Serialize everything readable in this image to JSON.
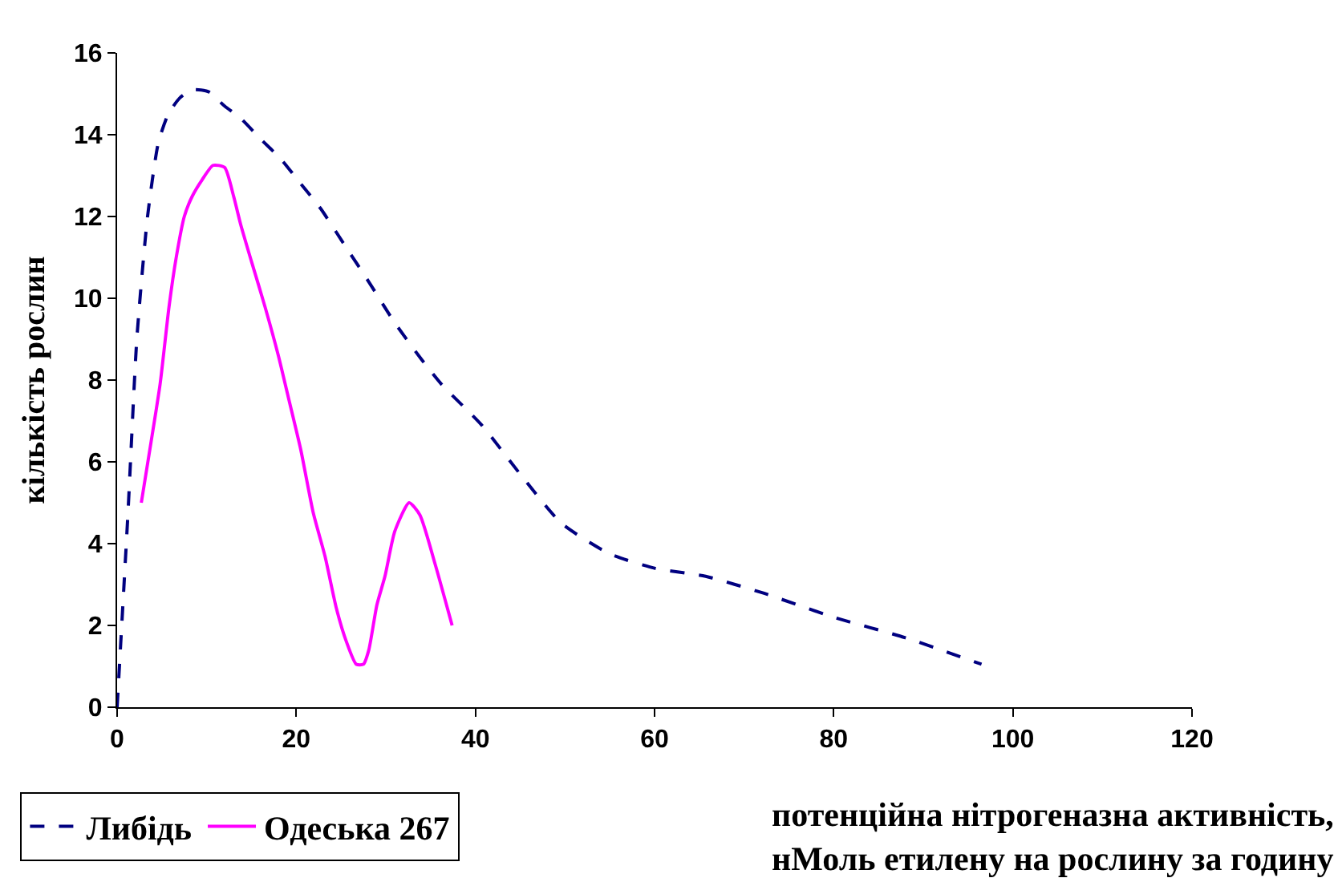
{
  "chart_data": {
    "type": "line",
    "xlabel": "потенційна нітрогеназна активність,\nнМоль етилену на рослину за годину",
    "ylabel": "кількість рослин",
    "xlim": [
      0,
      120
    ],
    "xticks": [
      0,
      20,
      40,
      60,
      80,
      100,
      120
    ],
    "ylim": [
      0,
      16
    ],
    "yticks": [
      0,
      2,
      4,
      6,
      8,
      10,
      12,
      14,
      16
    ],
    "legend": "bottom left",
    "marker": "none",
    "series": [
      {
        "name": "Либідь",
        "color": "#000080",
        "line_style": "dashed",
        "x": [
          0,
          1.2,
          2.2,
          3.4,
          4.6,
          5.7,
          7,
          8.4,
          10.2,
          12,
          13.8,
          16,
          18.3,
          20.5,
          22.7,
          25.4,
          28.1,
          31,
          34,
          36.2,
          40.7,
          45,
          49.6,
          55,
          60,
          65.7,
          72,
          80,
          88,
          96.5
        ],
        "values": [
          0,
          4.7,
          9,
          12,
          13.8,
          14.5,
          14.9,
          15.1,
          15.05,
          14.7,
          14.4,
          13.9,
          13.4,
          12.8,
          12.2,
          11.3,
          10.4,
          9.4,
          8.5,
          7.9,
          6.9,
          5.7,
          4.5,
          3.75,
          3.4,
          3.2,
          2.8,
          2.2,
          1.7,
          1.05
        ]
      },
      {
        "name": "Одеська 267",
        "color": "#ff00ff",
        "line_style": "solid",
        "x": [
          2.7,
          3.8,
          4.8,
          5.8,
          6.6,
          7.5,
          8.4,
          9.5,
          10.7,
          12,
          13,
          13.8,
          15,
          16.5,
          18,
          19.2,
          20.5,
          21.9,
          23.2,
          24.5,
          25.6,
          26.7,
          27.5,
          28.1,
          29,
          29.9,
          31,
          32.6,
          33.8,
          35.5,
          37.4
        ],
        "values": [
          5,
          6.5,
          7.9,
          9.8,
          11,
          12,
          12.5,
          12.9,
          13.25,
          13.2,
          12.5,
          11.8,
          10.9,
          9.8,
          8.6,
          7.5,
          6.3,
          4.75,
          3.7,
          2.4,
          1.6,
          1.05,
          1.05,
          1.4,
          2.5,
          3.2,
          4.3,
          5,
          4.7,
          3.5,
          2
        ]
      }
    ]
  }
}
